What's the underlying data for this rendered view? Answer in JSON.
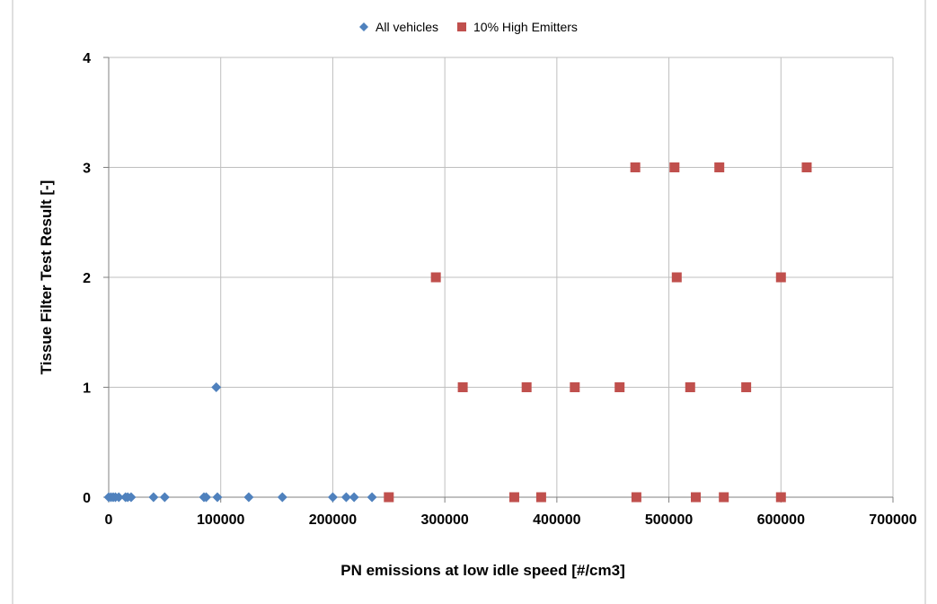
{
  "chart_data": {
    "type": "scatter",
    "title": "",
    "xlabel": "PN emissions at low idle speed [#/cm3]",
    "ylabel": "Tissue Filter Test Result [-]",
    "xlim": [
      0,
      700000
    ],
    "ylim": [
      0,
      4
    ],
    "x_ticks": [
      0,
      100000,
      200000,
      300000,
      400000,
      500000,
      600000,
      700000
    ],
    "y_ticks": [
      0,
      1,
      2,
      3,
      4
    ],
    "x_tick_labels": [
      "0",
      "100000",
      "200000",
      "300000",
      "400000",
      "500000",
      "600000",
      "700000"
    ],
    "y_tick_labels": [
      "0",
      "1",
      "2",
      "3",
      "4"
    ],
    "grid": true,
    "legend_position": "top-center",
    "series": [
      {
        "name": "All vehicles",
        "marker": "diamond",
        "color": "#4F81BD",
        "points": [
          [
            0,
            0
          ],
          [
            2000,
            0
          ],
          [
            4000,
            0
          ],
          [
            6000,
            0
          ],
          [
            9000,
            0
          ],
          [
            15000,
            0
          ],
          [
            17000,
            0
          ],
          [
            20000,
            0
          ],
          [
            40000,
            0
          ],
          [
            50000,
            0
          ],
          [
            85000,
            0
          ],
          [
            87000,
            0
          ],
          [
            97000,
            0
          ],
          [
            125000,
            0
          ],
          [
            155000,
            0
          ],
          [
            200000,
            0
          ],
          [
            212000,
            0
          ],
          [
            219000,
            0
          ],
          [
            235000,
            0
          ],
          [
            96000,
            1
          ]
        ]
      },
      {
        "name": "10% High Emitters",
        "marker": "square",
        "color": "#C0504D",
        "points": [
          [
            250000,
            0
          ],
          [
            362000,
            0
          ],
          [
            386000,
            0
          ],
          [
            471000,
            0
          ],
          [
            524000,
            0
          ],
          [
            549000,
            0
          ],
          [
            600000,
            0
          ],
          [
            316000,
            1
          ],
          [
            373000,
            1
          ],
          [
            416000,
            1
          ],
          [
            456000,
            1
          ],
          [
            519000,
            1
          ],
          [
            569000,
            1
          ],
          [
            292000,
            2
          ],
          [
            507000,
            2
          ],
          [
            600000,
            2
          ],
          [
            470000,
            3
          ],
          [
            505000,
            3
          ],
          [
            545000,
            3
          ],
          [
            623000,
            3
          ]
        ]
      }
    ]
  }
}
